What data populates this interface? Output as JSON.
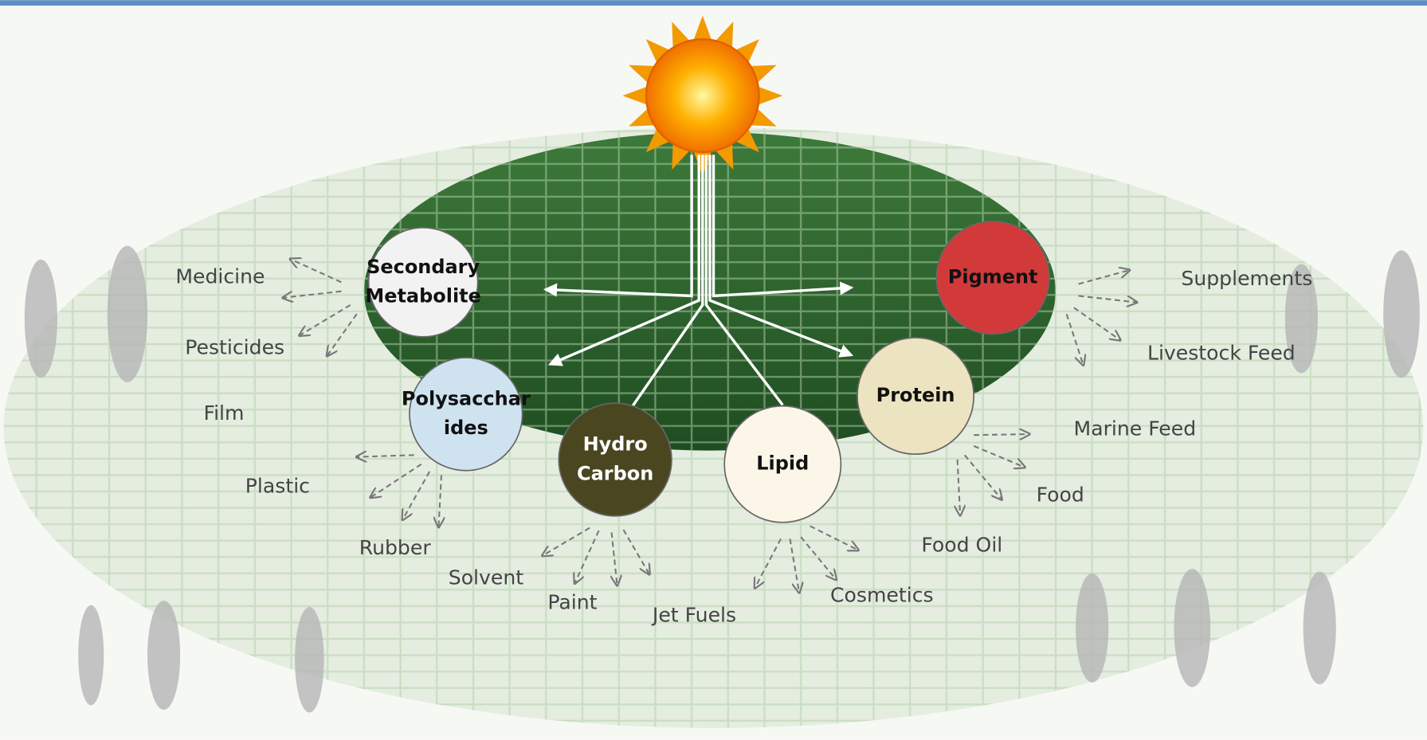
{
  "nodes": [
    {
      "lines": [
        "Secondary",
        "Metabolite"
      ],
      "products": [
        "Medicine",
        "Pesticides"
      ]
    },
    {
      "lines": [
        "Polysacchar",
        "ides"
      ],
      "products": [
        "Film",
        "Plastic",
        "Rubber"
      ]
    },
    {
      "lines": [
        "Hydro",
        "Carbon"
      ],
      "products": [
        "Solvent",
        "Paint",
        "Jet Fuels"
      ]
    },
    {
      "lines": [
        "Lipid"
      ],
      "products": [
        "Cosmetics",
        "Food Oil"
      ]
    },
    {
      "lines": [
        "Protein"
      ],
      "products": [
        "Marine Feed",
        "Food"
      ]
    },
    {
      "lines": [
        "Pigment"
      ],
      "products": [
        "Supplements",
        "Livestock Feed"
      ]
    }
  ]
}
